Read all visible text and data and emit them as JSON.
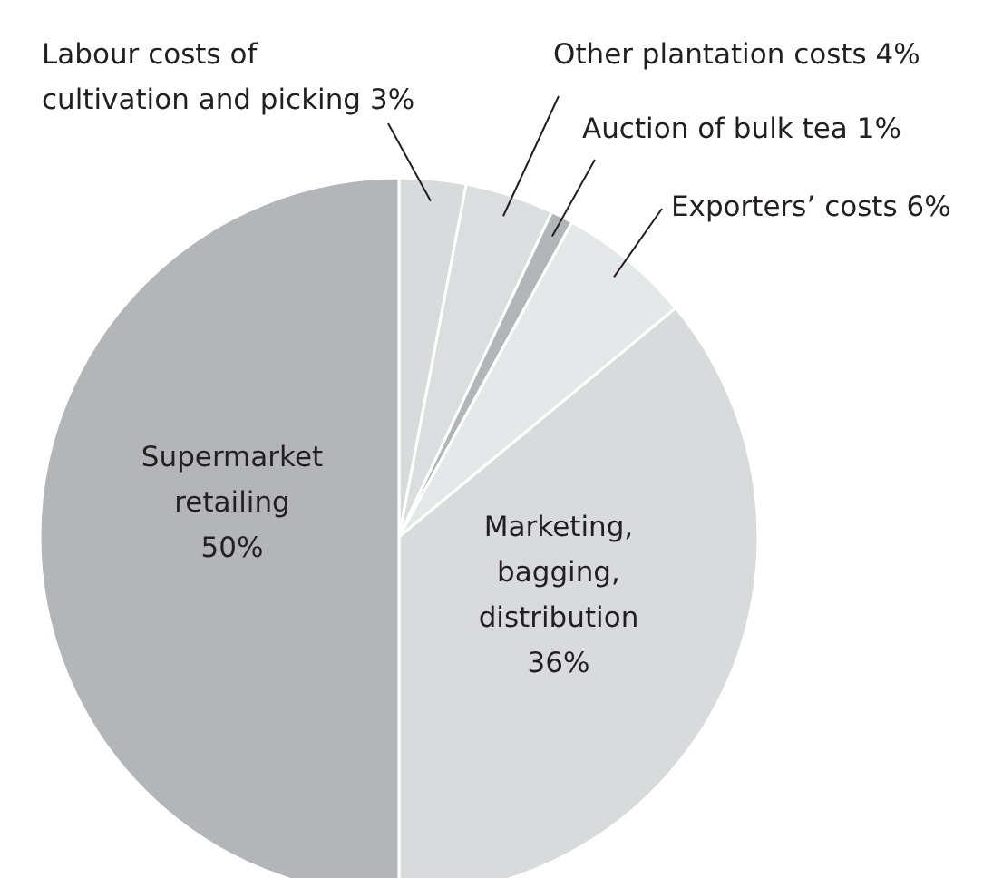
{
  "chart_data": {
    "type": "pie",
    "categories": [
      "Labour costs of cultivation and picking",
      "Other plantation costs",
      "Auction of bulk tea",
      "Exporters’ costs",
      "Marketing, bagging, distribution",
      "Supermarket retailing"
    ],
    "values": [
      3,
      4,
      1,
      6,
      36,
      50
    ],
    "colors": [
      "#d9dadc",
      "#dcdddf",
      "#b4b5b8",
      "#e6e7e9",
      "#d9dadc",
      "#b4b5b8"
    ],
    "value_labels": [
      "3%",
      "4%",
      "1%",
      "6%",
      "36%",
      "50%"
    ]
  }
}
